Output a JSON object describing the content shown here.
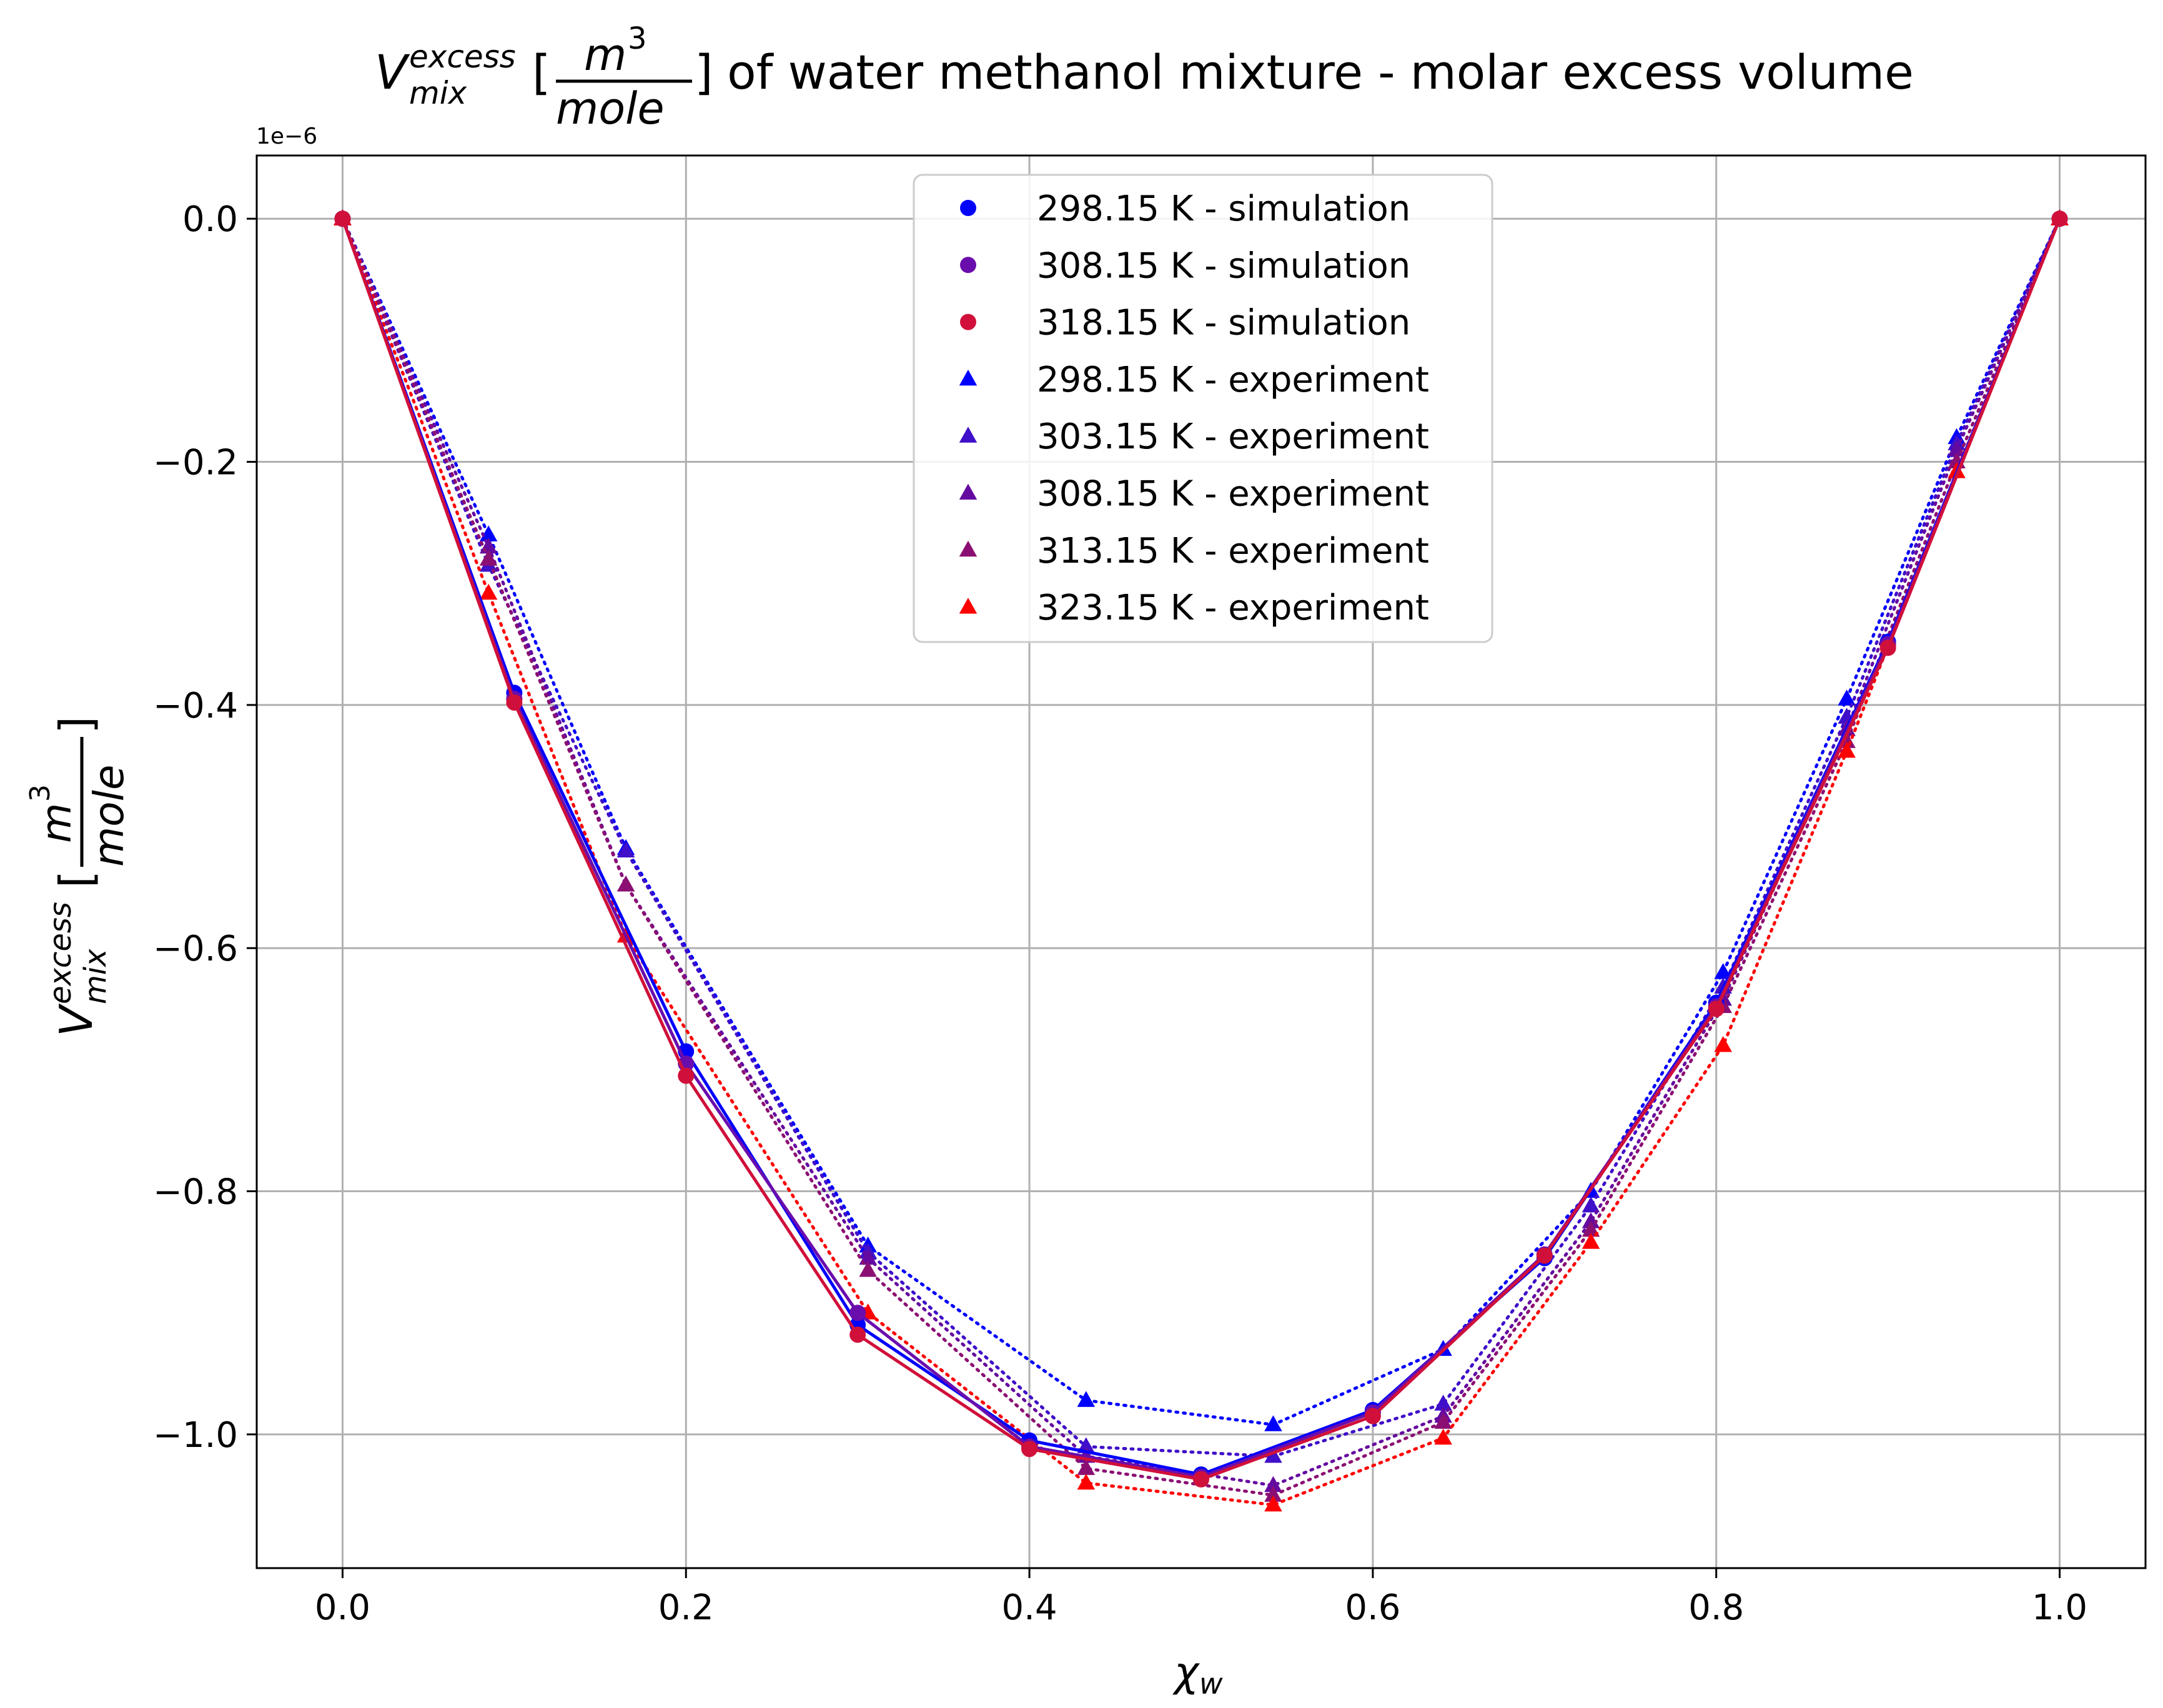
{
  "chart_data": {
    "type": "scatter",
    "title": {
      "v_symbol": "V",
      "superscript": "excess",
      "subscript": "mix",
      "bracket_open": "[",
      "frac_num_base": "m",
      "frac_num_exp": "3",
      "frac_den": "mole",
      "bracket_close": "]",
      "rest": " of water methanol mixture - molar excess volume"
    },
    "xlabel": {
      "symbol": "χ",
      "subscript": "w"
    },
    "ylabel": {
      "v_symbol": "V",
      "superscript": "excess",
      "subscript": "mix",
      "bracket_open": "[",
      "frac_num_base": "m",
      "frac_num_exp": "3",
      "frac_den": "mole",
      "bracket_close": "]"
    },
    "y_offset_text": "1e−6",
    "xlim": [
      -0.05,
      1.05
    ],
    "ylim": [
      -1.11,
      0.052
    ],
    "x_ticks": [
      0.0,
      0.2,
      0.4,
      0.6,
      0.8,
      1.0
    ],
    "x_tick_labels": [
      "0.0",
      "0.2",
      "0.4",
      "0.6",
      "0.8",
      "1.0"
    ],
    "y_ticks": [
      0.0,
      -0.2,
      -0.4,
      -0.6,
      -0.8,
      -1.0
    ],
    "y_tick_labels": [
      "0.0",
      "−0.2",
      "−0.4",
      "−0.6",
      "−0.8",
      "−1.0"
    ],
    "grid": true,
    "legend_position": "upper center",
    "series": [
      {
        "name": "298.15 K - simulation",
        "marker": "circle",
        "line": "solid",
        "color": "#0000ff",
        "x": [
          0.0,
          0.1,
          0.2,
          0.3,
          0.4,
          0.5,
          0.6,
          0.7,
          0.8,
          0.9,
          1.0
        ],
        "y": [
          0.0,
          -0.39,
          -0.685,
          -0.91,
          -1.005,
          -1.033,
          -0.98,
          -0.855,
          -0.645,
          -0.348,
          0.0
        ]
      },
      {
        "name": "308.15 K - simulation",
        "marker": "circle",
        "line": "solid",
        "color": "#6a0dad",
        "x": [
          0.0,
          0.1,
          0.2,
          0.3,
          0.4,
          0.5,
          0.6,
          0.7,
          0.8,
          0.9,
          1.0
        ],
        "y": [
          0.0,
          -0.395,
          -0.695,
          -0.9,
          -1.01,
          -1.035,
          -0.982,
          -0.852,
          -0.648,
          -0.35,
          0.0
        ]
      },
      {
        "name": "318.15 K - simulation",
        "marker": "circle",
        "line": "solid",
        "color": "#d0103a",
        "x": [
          0.0,
          0.1,
          0.2,
          0.3,
          0.4,
          0.5,
          0.6,
          0.7,
          0.8,
          0.9,
          1.0
        ],
        "y": [
          0.0,
          -0.398,
          -0.705,
          -0.918,
          -1.012,
          -1.037,
          -0.985,
          -0.853,
          -0.65,
          -0.353,
          0.0
        ]
      },
      {
        "name": "298.15 K - experiment",
        "marker": "triangle",
        "line": "dotted",
        "color": "#0000ff",
        "x": [
          0.0,
          0.085,
          0.165,
          0.306,
          0.433,
          0.542,
          0.641,
          0.727,
          0.804,
          0.876,
          0.94,
          1.0
        ],
        "y": [
          0.0,
          -0.26,
          -0.518,
          -0.845,
          -0.972,
          -0.992,
          -0.93,
          -0.8,
          -0.62,
          -0.395,
          -0.18,
          0.0
        ]
      },
      {
        "name": "303.15 K - experiment",
        "marker": "triangle",
        "line": "dotted",
        "color": "#3f0fc9",
        "x": [
          0.0,
          0.085,
          0.165,
          0.306,
          0.433,
          0.542,
          0.641,
          0.727,
          0.804,
          0.876,
          0.94,
          1.0
        ],
        "y": [
          0.0,
          -0.285,
          -0.52,
          -0.85,
          -1.01,
          -1.018,
          -0.975,
          -0.812,
          -0.632,
          -0.41,
          -0.185,
          0.0
        ]
      },
      {
        "name": "308.15 K - experiment",
        "marker": "triangle",
        "line": "dotted",
        "color": "#650aa0",
        "x": [
          0.0,
          0.085,
          0.165,
          0.306,
          0.433,
          0.542,
          0.641,
          0.727,
          0.804,
          0.876,
          0.94,
          1.0
        ],
        "y": [
          0.0,
          -0.27,
          -0.548,
          -0.855,
          -1.018,
          -1.042,
          -0.985,
          -0.825,
          -0.642,
          -0.42,
          -0.19,
          0.0
        ]
      },
      {
        "name": "313.15 K - experiment",
        "marker": "triangle",
        "line": "dotted",
        "color": "#8b0f72",
        "x": [
          0.0,
          0.085,
          0.165,
          0.306,
          0.433,
          0.542,
          0.641,
          0.727,
          0.804,
          0.876,
          0.94,
          1.0
        ],
        "y": [
          0.0,
          -0.28,
          -0.548,
          -0.865,
          -1.028,
          -1.05,
          -0.99,
          -0.832,
          -0.648,
          -0.43,
          -0.2,
          0.0
        ]
      },
      {
        "name": "323.15 K - experiment",
        "marker": "triangle",
        "line": "dotted",
        "color": "#ff0000",
        "x": [
          0.0,
          0.085,
          0.165,
          0.306,
          0.433,
          0.542,
          0.641,
          0.727,
          0.804,
          0.876,
          0.94,
          1.0
        ],
        "y": [
          0.0,
          -0.308,
          -0.59,
          -0.9,
          -1.04,
          -1.058,
          -1.003,
          -0.842,
          -0.68,
          -0.438,
          -0.208,
          0.0
        ]
      }
    ]
  }
}
